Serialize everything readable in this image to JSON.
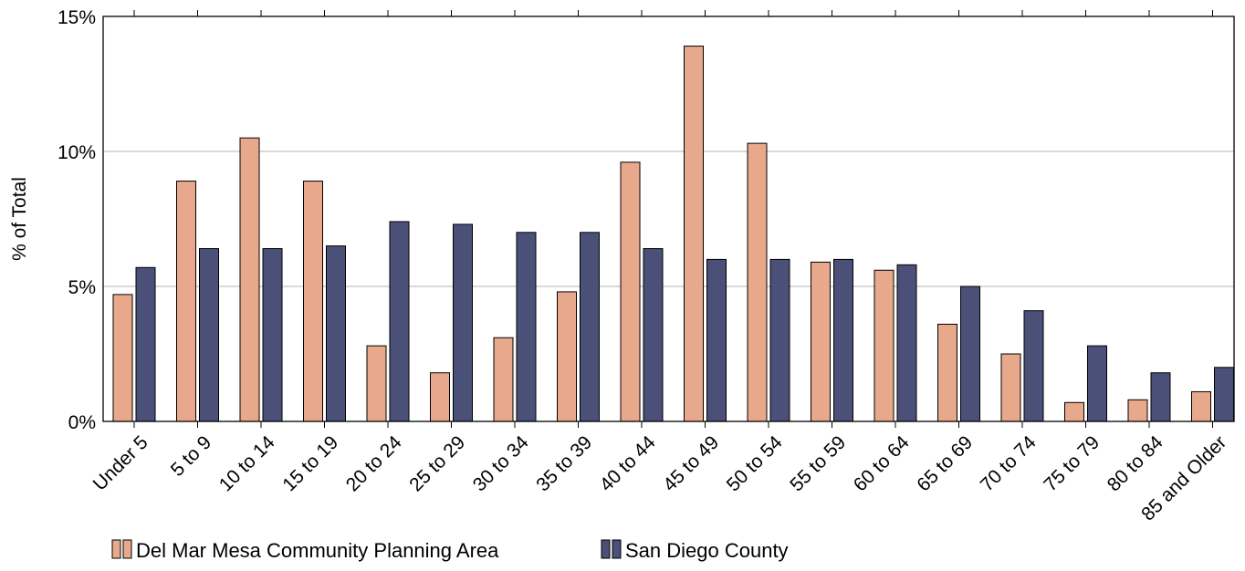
{
  "chart_data": {
    "type": "bar",
    "title": "",
    "xlabel": "",
    "ylabel": "% of Total",
    "ylim": [
      0,
      15
    ],
    "y_ticks": [
      "0%",
      "5%",
      "10%",
      "15%"
    ],
    "y_tick_values": [
      0,
      5,
      10,
      15
    ],
    "grid": "horizontal",
    "legend_position": "bottom-left",
    "categories": [
      "Under 5",
      "5 to 9",
      "10 to 14",
      "15 to 19",
      "20 to 24",
      "25 to 29",
      "30 to 34",
      "35 to 39",
      "40 to 44",
      "45 to 49",
      "50 to 54",
      "55 to 59",
      "60 to 64",
      "65 to 69",
      "70 to 74",
      "75 to 79",
      "80 to 84",
      "85 and Older"
    ],
    "series": [
      {
        "name": "Del Mar Mesa Community Planning Area",
        "color": "#e8a88c",
        "values": [
          4.7,
          8.9,
          10.5,
          8.9,
          2.8,
          1.8,
          3.1,
          4.8,
          9.6,
          13.9,
          10.3,
          5.9,
          5.6,
          3.6,
          2.5,
          0.7,
          0.8,
          1.1
        ]
      },
      {
        "name": "San Diego County",
        "color": "#4a5078",
        "values": [
          5.7,
          6.4,
          6.4,
          6.5,
          7.4,
          7.3,
          7.0,
          7.0,
          6.4,
          6.0,
          6.0,
          6.0,
          5.8,
          5.0,
          4.1,
          2.8,
          1.8,
          2.0
        ]
      }
    ]
  }
}
